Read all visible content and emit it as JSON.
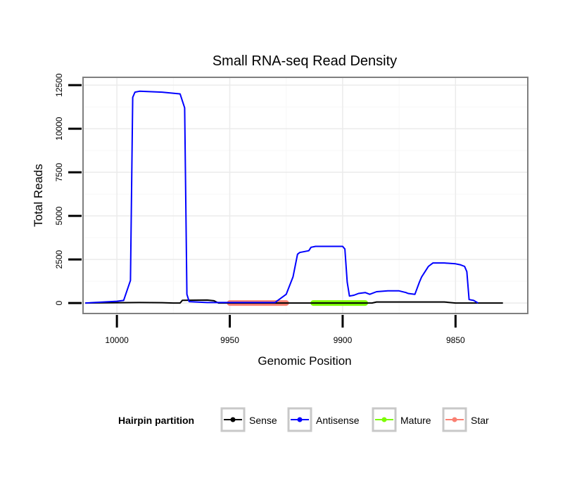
{
  "chart_data": {
    "type": "line",
    "title": "Small RNA-seq Read Density",
    "xlabel": "Genomic Position",
    "ylabel": "Total Reads",
    "x_reversed": true,
    "xlim": [
      10015,
      9818
    ],
    "ylim": [
      -600,
      12950
    ],
    "x_ticks": [
      10000,
      9950,
      9900,
      9850
    ],
    "y_ticks": [
      0,
      2500,
      5000,
      7500,
      10000,
      12500
    ],
    "grid": true,
    "legend": {
      "position": "bottom",
      "title": "Hairpin partition",
      "entries": [
        "Sense",
        "Antisense",
        "Mature",
        "Star"
      ]
    },
    "series": [
      {
        "name": "Sense",
        "color": "#000000",
        "x": [
          10014,
          9990,
          9980,
          9975,
          9972,
          9971,
          9960,
          9957,
          9955,
          9930,
          9900,
          9890,
          9887,
          9885,
          9855,
          9850,
          9840,
          9829
        ],
        "y": [
          0,
          30,
          20,
          0,
          0,
          160,
          170,
          130,
          0,
          0,
          0,
          0,
          0,
          60,
          60,
          0,
          0,
          0
        ]
      },
      {
        "name": "Antisense",
        "color": "#0000ff",
        "x": [
          10014,
          10000,
          9997,
          9994,
          9993,
          9992,
          9990,
          9980,
          9972,
          9970,
          9969,
          9968,
          9960,
          9930,
          9925,
          9922,
          9920,
          9919,
          9915,
          9914,
          9912,
          9900,
          9899,
          9898,
          9897,
          9895,
          9893,
          9890,
          9888,
          9885,
          9880,
          9875,
          9872,
          9871,
          9868,
          9866,
          9865,
          9862,
          9860,
          9858,
          9855,
          9850,
          9848,
          9846,
          9845,
          9844,
          9842,
          9840
        ],
        "y": [
          0,
          100,
          150,
          1300,
          11800,
          12100,
          12150,
          12100,
          12000,
          11200,
          500,
          80,
          30,
          30,
          500,
          1500,
          2800,
          2900,
          3000,
          3200,
          3250,
          3250,
          3100,
          1200,
          400,
          450,
          550,
          600,
          500,
          650,
          700,
          700,
          600,
          550,
          500,
          1200,
          1500,
          2100,
          2300,
          2300,
          2300,
          2250,
          2200,
          2100,
          1800,
          200,
          150,
          0
        ]
      },
      {
        "name": "Mature",
        "color": "#7cfc00",
        "x": [
          9913,
          9890
        ],
        "y": [
          0,
          0
        ]
      },
      {
        "name": "Star",
        "color": "#fa8072",
        "x": [
          9950,
          9925
        ],
        "y": [
          0,
          0
        ]
      }
    ]
  }
}
